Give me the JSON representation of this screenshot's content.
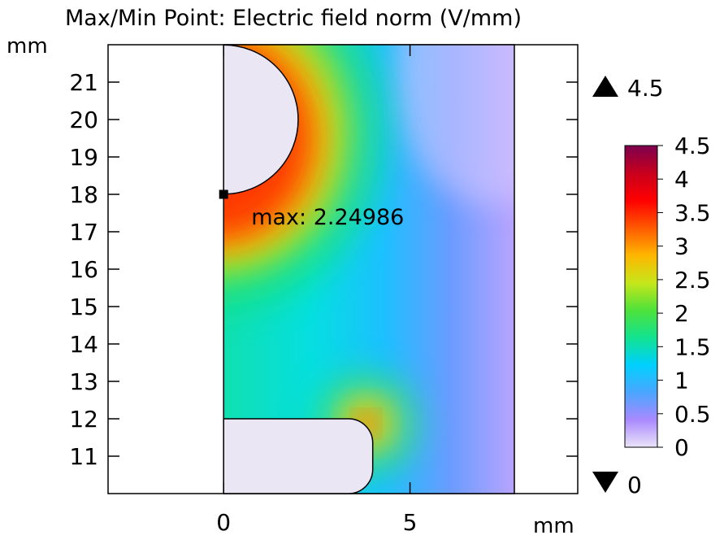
{
  "chart_data": {
    "type": "heatmap",
    "title": "Max/Min Point: Electric field norm (V/mm)",
    "x_unit": "mm",
    "y_unit": "mm",
    "x_ticks": [
      0,
      5
    ],
    "y_ticks": [
      11,
      12,
      13,
      14,
      15,
      16,
      17,
      18,
      19,
      20,
      21
    ],
    "xlim": [
      -3.1,
      9.5
    ],
    "ylim": [
      10.0,
      22.0
    ],
    "color_range": {
      "max_label": "4.5",
      "min_label": "0",
      "max_value": 4.5,
      "min_value": 0
    },
    "colorbar": {
      "ticks": [
        "0",
        "0.5",
        "1",
        "1.5",
        "2",
        "2.5",
        "3",
        "3.5",
        "4",
        "4.5"
      ],
      "range": [
        0,
        4.5
      ],
      "colors": [
        "#ebe4f7",
        "#a989ff",
        "#4aa6ff",
        "#00d0ff",
        "#12e38f",
        "#4fe23a",
        "#c6e61a",
        "#ffb600",
        "#ff5a00",
        "#ff0000",
        "#c8001d",
        "#7c004e"
      ]
    },
    "annotation": {
      "label": "max: 2.24986",
      "x": 0,
      "y": 18,
      "value": 2.24986
    },
    "geometry": {
      "domain": {
        "x": [
          0,
          7.8
        ],
        "y": [
          10.0,
          22.0
        ]
      },
      "circle": {
        "cx": 0,
        "cy": 20,
        "r": 2.0
      },
      "rounded_rect": {
        "x0": 0,
        "x1": 4.0,
        "y0": 10.0,
        "y1": 12.0,
        "corner_r": 0.65
      }
    },
    "field": {
      "background_value": 0.95,
      "far_value": 0.2
    }
  }
}
